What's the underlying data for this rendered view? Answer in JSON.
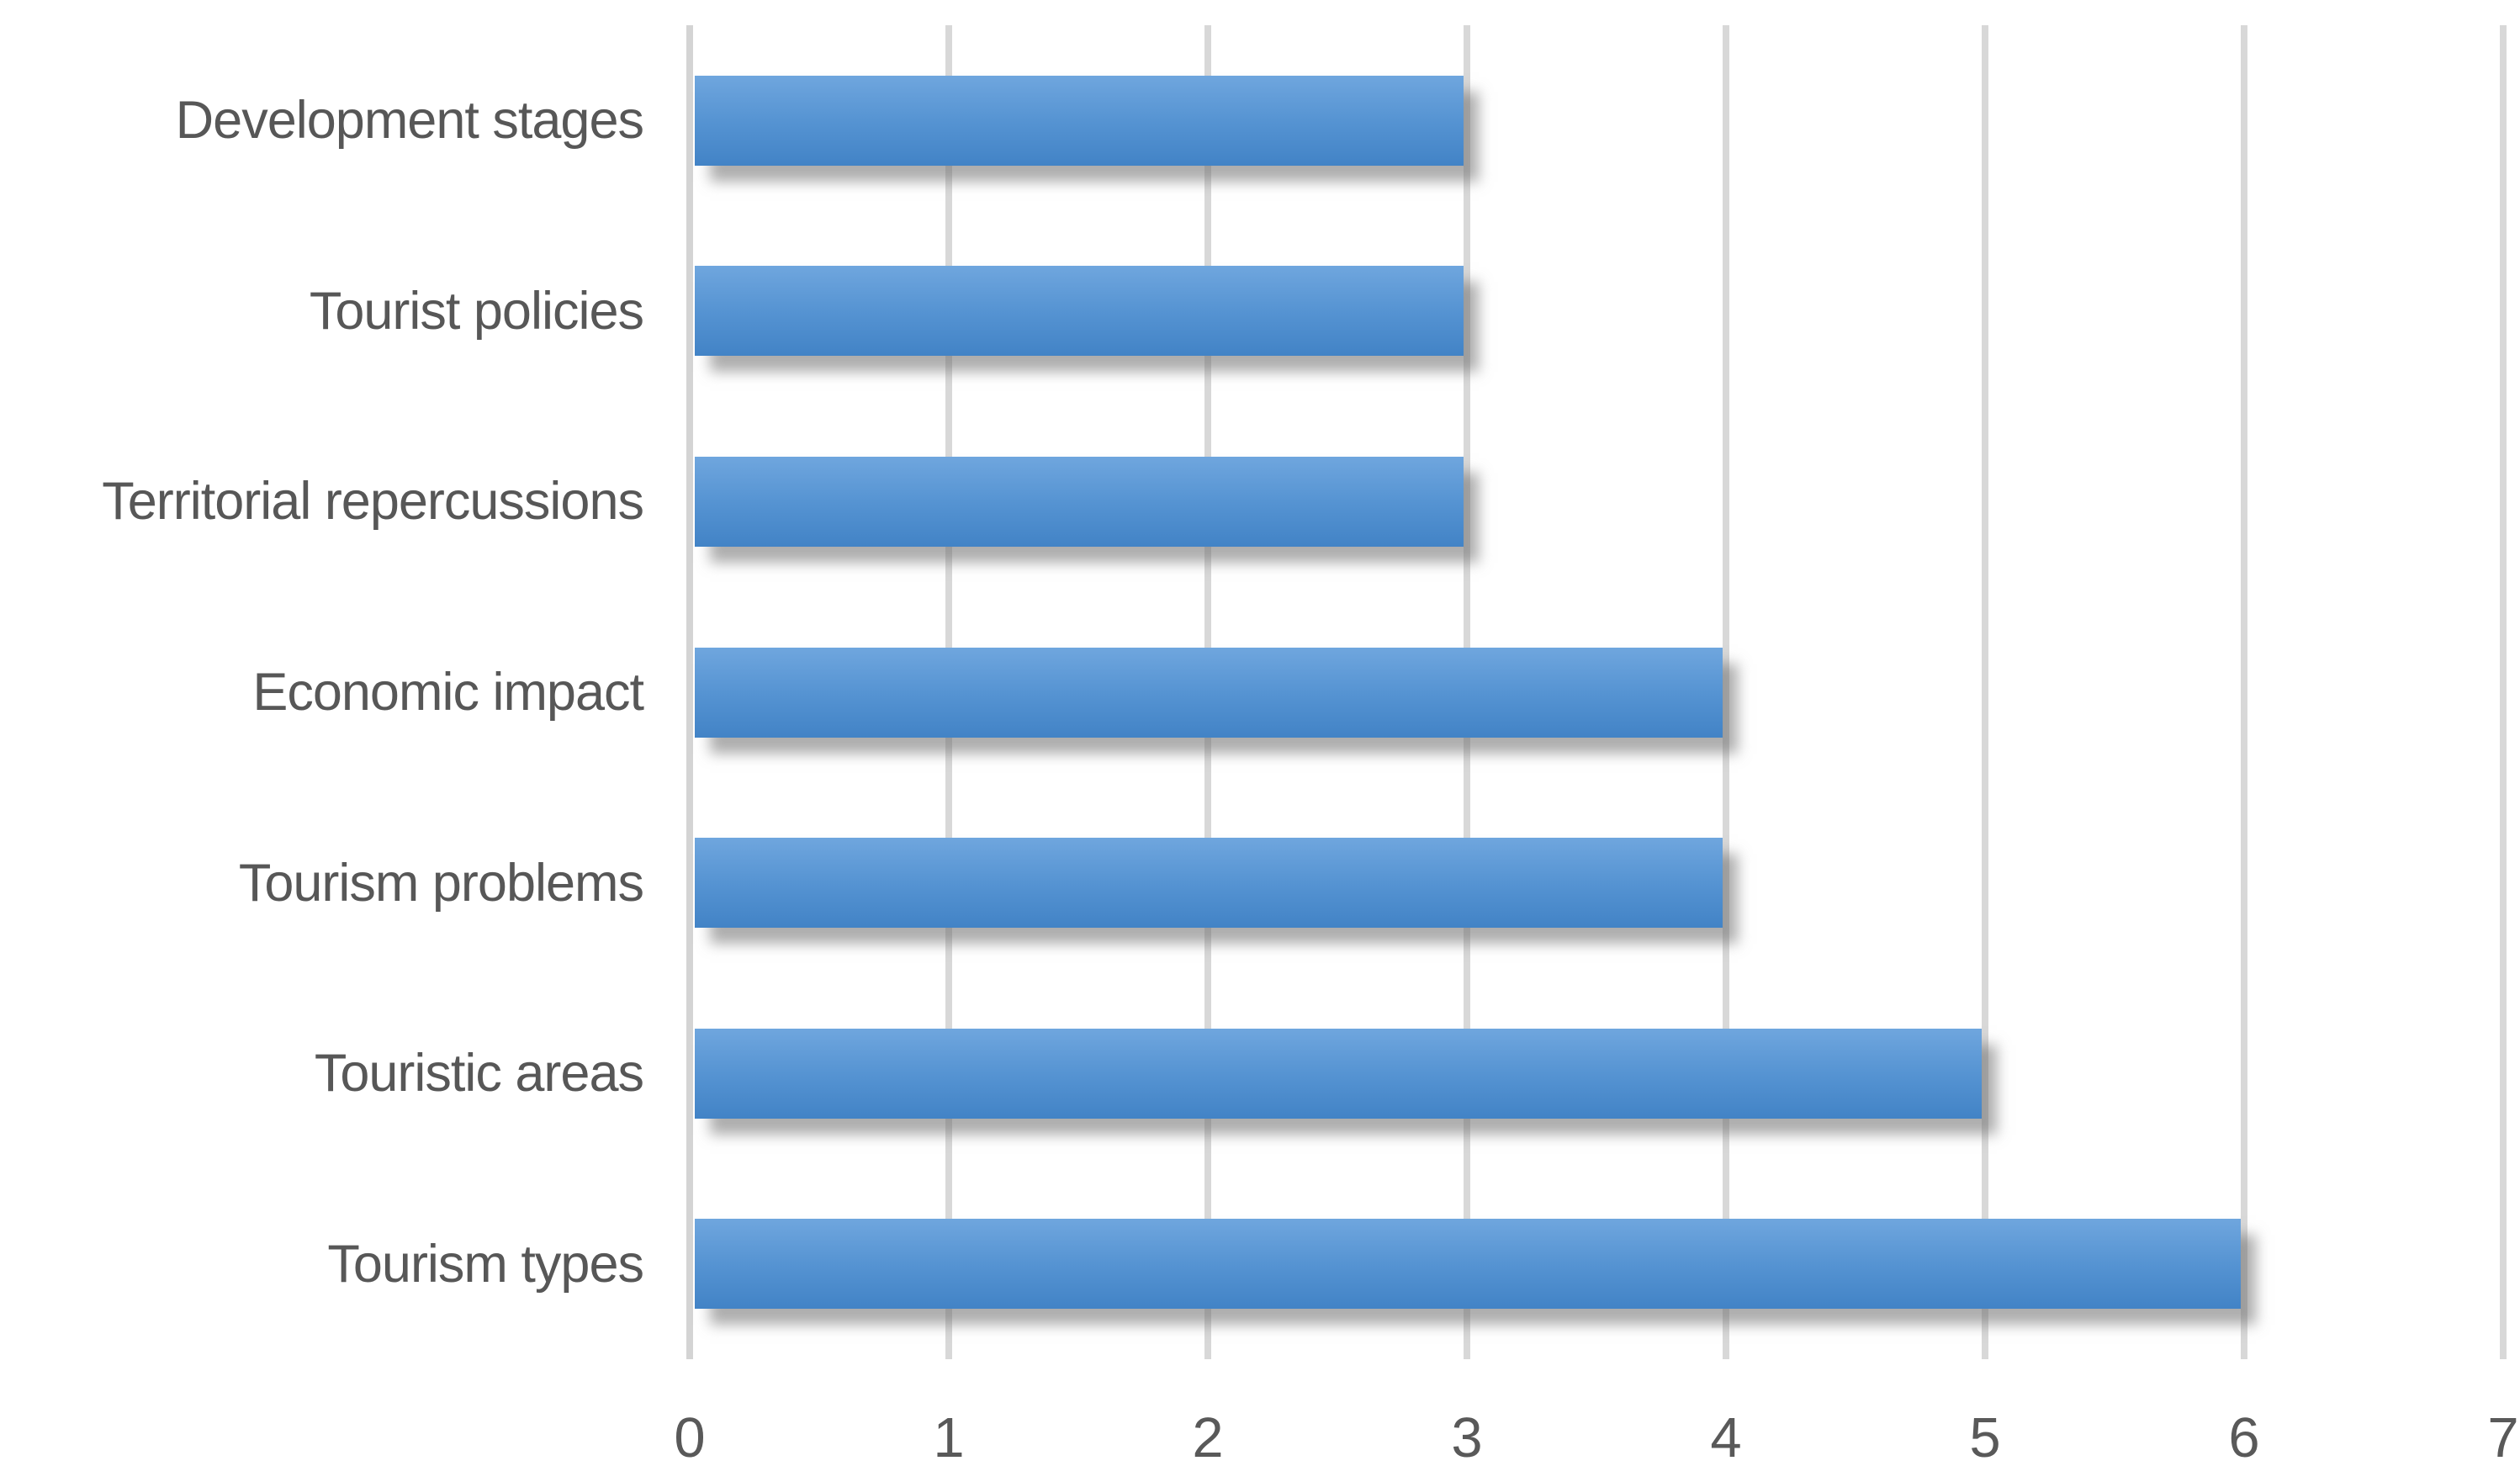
{
  "chart_data": {
    "type": "bar",
    "orientation": "horizontal",
    "title": "",
    "categories": [
      "Development stages",
      "Tourist policies",
      "Territorial repercussions",
      "Economic impact",
      "Tourism problems",
      "Touristic areas",
      "Tourism types"
    ],
    "values": [
      3,
      3,
      3,
      4,
      4,
      5,
      6
    ],
    "xlabel": "",
    "ylabel": "",
    "xlim": [
      0,
      7
    ],
    "x_ticks": [
      "0",
      "1",
      "2",
      "3",
      "4",
      "5",
      "6",
      "7"
    ],
    "grid": true,
    "legend_position": "none",
    "colors": {
      "bar_gradient_top": "#6FA6DE",
      "bar_gradient_bottom": "#4283C6",
      "gridline": "#D8D8D8",
      "text": "#575757",
      "background": "#FFFFFF"
    }
  }
}
